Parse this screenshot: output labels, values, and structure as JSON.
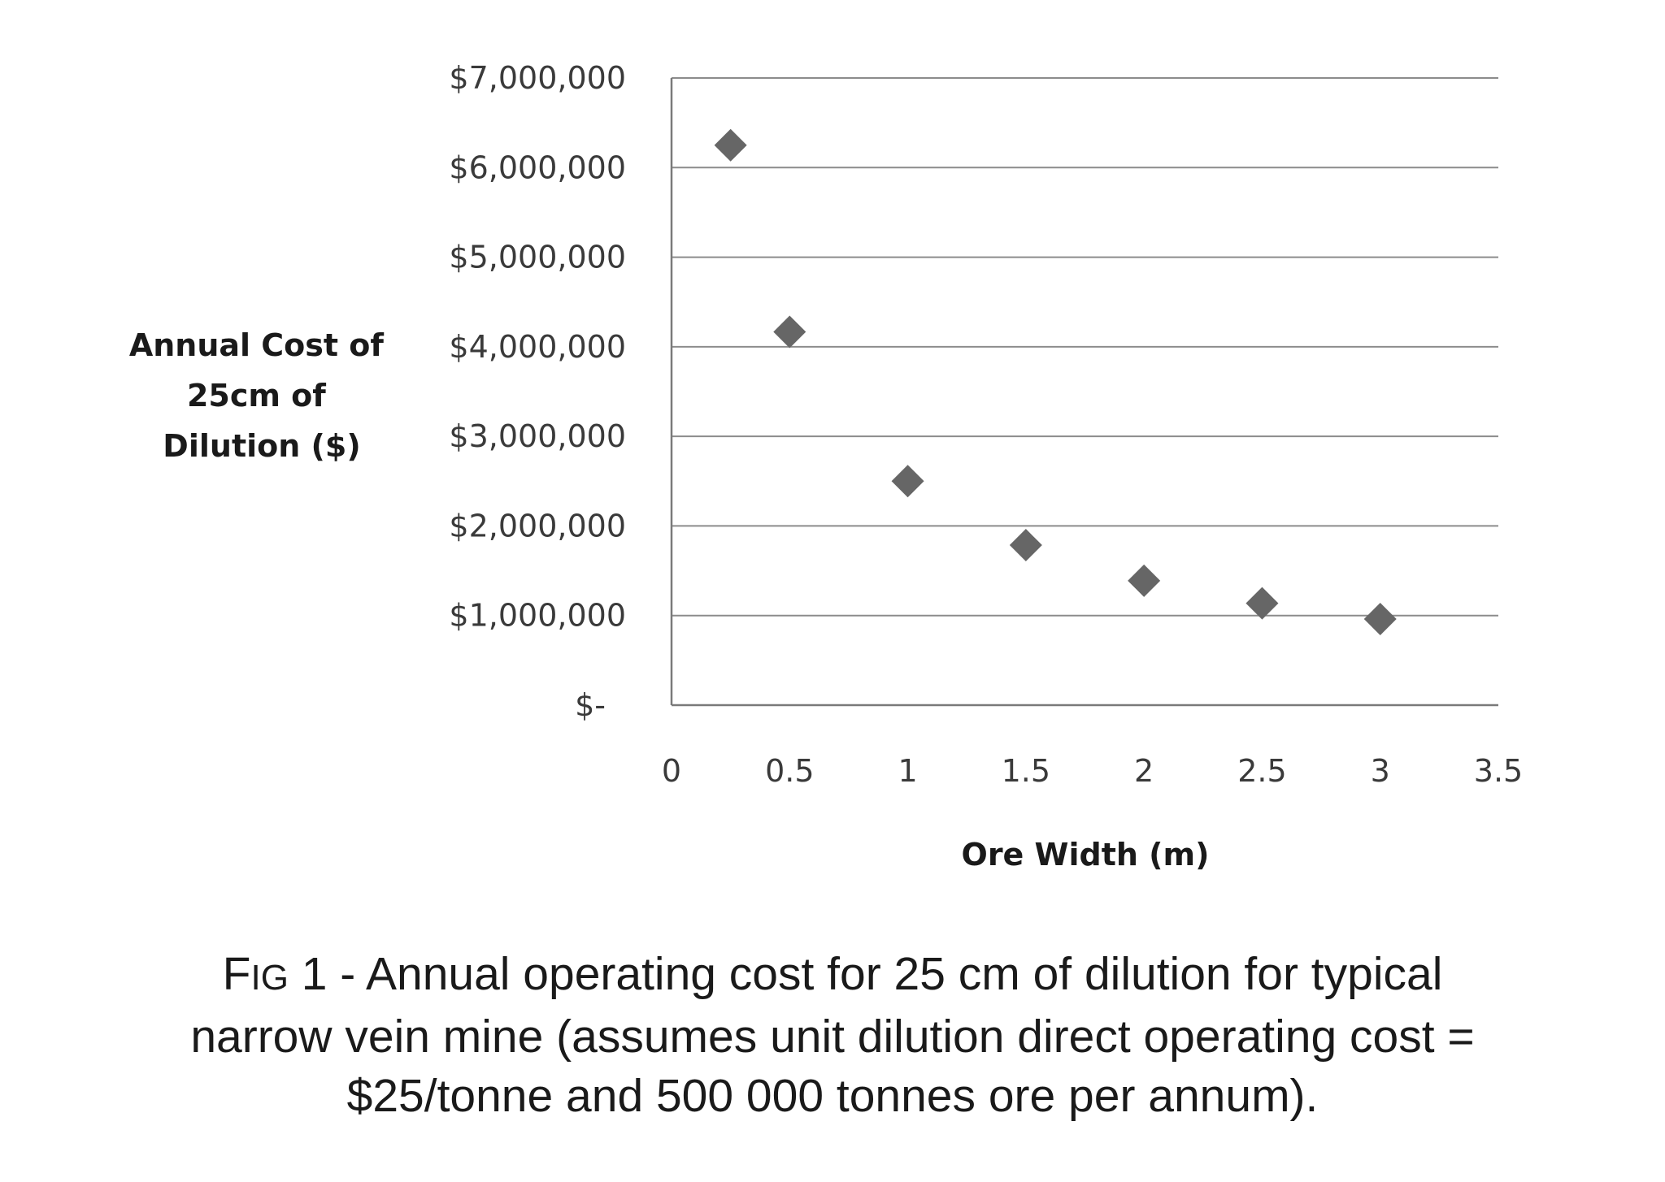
{
  "chart_data": {
    "type": "scatter",
    "ylabel_lines": [
      "Annual Cost of",
      "25cm of",
      "Dilution ($)"
    ],
    "xlabel": "Ore Width (m)",
    "x": [
      0.25,
      0.5,
      1,
      1.5,
      2,
      2.5,
      3
    ],
    "y": [
      6250000,
      4166667,
      2500000,
      1785714,
      1388889,
      1136364,
      961538
    ],
    "xlim": [
      0,
      3.5
    ],
    "ylim": [
      0,
      7000000
    ],
    "x_ticks": [
      0,
      0.5,
      1,
      1.5,
      2,
      2.5,
      3,
      3.5
    ],
    "x_tick_labels": [
      "0",
      "0.5",
      "1",
      "1.5",
      "2",
      "2.5",
      "3",
      "3.5"
    ],
    "y_ticks": [
      0,
      1000000,
      2000000,
      3000000,
      4000000,
      5000000,
      6000000,
      7000000
    ],
    "y_tick_labels": [
      "$-",
      "$1,000,000",
      "$2,000,000",
      "$3,000,000",
      "$4,000,000",
      "$5,000,000",
      "$6,000,000",
      "$7,000,000"
    ],
    "grid": "horizontal",
    "marker": "diamond",
    "marker_color": "#666666",
    "grid_color": "#8c8c8c"
  },
  "caption": {
    "fig_big_f": "F",
    "fig_small_ig": "IG",
    "lines": [
      " 1 - Annual operating cost for 25 cm of dilution for typical",
      "narrow vein mine (assumes unit dilution direct operating cost =",
      "$25/tonne and 500 000 tonnes ore per annum)."
    ]
  }
}
